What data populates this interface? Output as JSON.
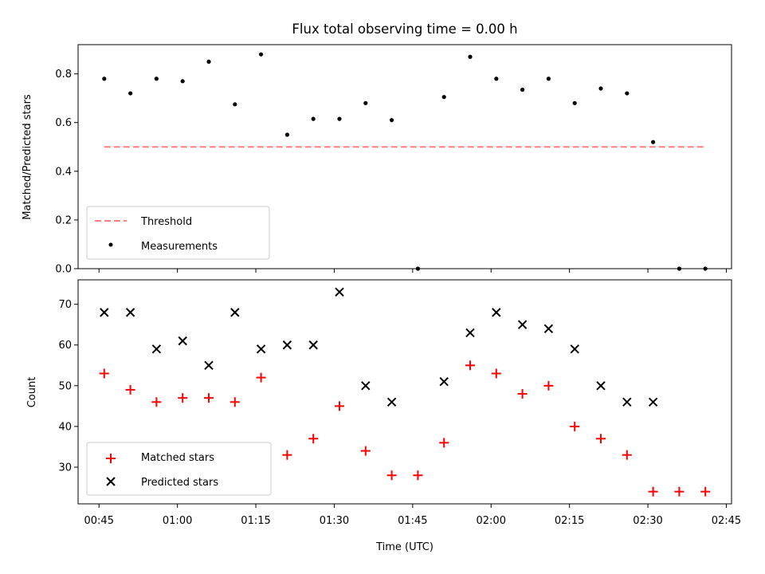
{
  "chart_data": [
    {
      "type": "scatter",
      "title": "Flux total observing time = 0.00 h",
      "xlabel": "",
      "ylabel": "Matched/Predicted stars",
      "ylim": [
        0,
        0.92
      ],
      "yticks": [
        "0.0",
        "0.2",
        "0.4",
        "0.6",
        "0.8"
      ],
      "x": [
        "00:46",
        "00:51",
        "00:56",
        "01:01",
        "01:06",
        "01:11",
        "01:16",
        "01:21",
        "01:26",
        "01:31",
        "01:36",
        "01:41",
        "01:46",
        "01:51",
        "01:56",
        "02:01",
        "02:06",
        "02:11",
        "02:16",
        "02:21",
        "02:26",
        "02:31",
        "02:36",
        "02:41"
      ],
      "series": [
        {
          "name": "Measurements",
          "marker": "dot",
          "color": "#000000",
          "values": [
            0.78,
            0.72,
            0.78,
            0.77,
            0.85,
            0.675,
            0.88,
            0.55,
            0.615,
            0.615,
            0.68,
            0.61,
            0.0,
            0.705,
            0.87,
            0.78,
            0.735,
            0.78,
            0.68,
            0.74,
            0.72,
            0.52,
            0.0,
            0.0
          ]
        },
        {
          "name": "Threshold",
          "marker": "dashed-line",
          "color": "#ff7f7f",
          "x": [
            "00:46",
            "02:41"
          ],
          "values": [
            0.5,
            0.5
          ]
        }
      ],
      "legend": "lower-left",
      "legend_entries": [
        "Threshold",
        "Measurements"
      ]
    },
    {
      "type": "scatter",
      "title": "",
      "xlabel": "Time (UTC)",
      "ylabel": "Count",
      "ylim": [
        21,
        76
      ],
      "yticks": [
        "30",
        "40",
        "50",
        "60",
        "70"
      ],
      "xlim": [
        "00:41",
        "02:46"
      ],
      "xticks": [
        "00:45",
        "01:00",
        "01:15",
        "01:30",
        "01:45",
        "02:00",
        "02:15",
        "02:30",
        "02:45"
      ],
      "x": [
        "00:46",
        "00:51",
        "00:56",
        "01:01",
        "01:06",
        "01:11",
        "01:16",
        "01:21",
        "01:26",
        "01:31",
        "01:36",
        "01:41",
        "01:46",
        "01:51",
        "01:56",
        "02:01",
        "02:06",
        "02:11",
        "02:16",
        "02:21",
        "02:26",
        "02:31",
        "02:36",
        "02:41"
      ],
      "series": [
        {
          "name": "Matched stars",
          "marker": "plus",
          "color": "#ff0000",
          "values": [
            53,
            49,
            46,
            47,
            47,
            46,
            52,
            33,
            37,
            45,
            34,
            28,
            28,
            36,
            55,
            53,
            48,
            50,
            40,
            37,
            33,
            24,
            24,
            24
          ]
        },
        {
          "name": "Predicted stars",
          "marker": "x",
          "color": "#000000",
          "values": [
            68,
            68,
            59,
            61,
            55,
            68,
            59,
            60,
            60,
            73,
            50,
            46,
            null,
            51,
            63,
            68,
            65,
            64,
            59,
            50,
            46,
            46,
            null,
            null
          ]
        }
      ],
      "legend": "lower-left",
      "legend_entries": [
        "Matched stars",
        "Predicted stars"
      ]
    }
  ]
}
